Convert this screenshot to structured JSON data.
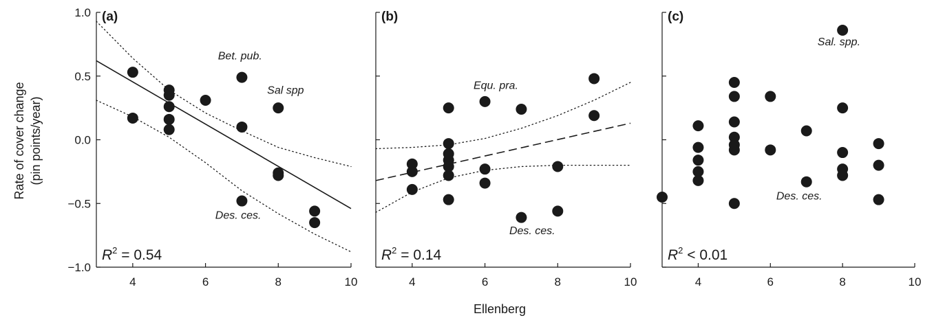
{
  "figure": {
    "ylabel_line1": "Rate of cover change",
    "ylabel_line2": "(pin points/year)",
    "xlabel": "Ellenberg"
  },
  "chart_data": [
    {
      "type": "scatter",
      "panel": "(a)",
      "r2_prefix": "R",
      "r2_sup": "2",
      "r2_value": " = 0.54",
      "xlim": [
        3,
        10
      ],
      "ylim": [
        -1.0,
        1.0
      ],
      "x_ticks": [
        4,
        6,
        8,
        10
      ],
      "y_ticks": [
        -1.0,
        -0.5,
        0.0,
        0.5,
        1.0
      ],
      "y_tick_labels": [
        "−1.0",
        "−0.5",
        "0.0",
        "0.5",
        "1.0"
      ],
      "points": [
        [
          4,
          0.53
        ],
        [
          4,
          0.17
        ],
        [
          5,
          0.39
        ],
        [
          5,
          0.35
        ],
        [
          5,
          0.26
        ],
        [
          5,
          0.16
        ],
        [
          5,
          0.08
        ],
        [
          6,
          0.31
        ],
        [
          7,
          0.49
        ],
        [
          7,
          0.1
        ],
        [
          7,
          -0.48
        ],
        [
          8,
          0.25
        ],
        [
          8,
          -0.26
        ],
        [
          8,
          -0.28
        ],
        [
          9,
          -0.56
        ],
        [
          9,
          -0.65
        ]
      ],
      "fit_line": {
        "style": "solid",
        "x": [
          3,
          10
        ],
        "y": [
          0.62,
          -0.54
        ]
      },
      "ci_lower": {
        "x": [
          3,
          4,
          5,
          6,
          7,
          8,
          9,
          10
        ],
        "y": [
          0.31,
          0.18,
          0.02,
          -0.18,
          -0.4,
          -0.58,
          -0.74,
          -0.88
        ]
      },
      "ci_upper": {
        "x": [
          3,
          4,
          5,
          6,
          7,
          8,
          9,
          10
        ],
        "y": [
          0.93,
          0.64,
          0.39,
          0.21,
          0.07,
          -0.06,
          -0.14,
          -0.21
        ]
      },
      "annotations": [
        {
          "text": "Bet. pub.",
          "x": 6.95,
          "y": 0.63
        },
        {
          "text": "Sal spp",
          "x": 8.2,
          "y": 0.36
        },
        {
          "text": "Des. ces.",
          "x": 6.9,
          "y": -0.62
        }
      ]
    },
    {
      "type": "scatter",
      "panel": "(b)",
      "r2_prefix": "R",
      "r2_sup": "2",
      "r2_value": " = 0.14",
      "xlim": [
        3,
        10
      ],
      "ylim": [
        -1.0,
        1.0
      ],
      "x_ticks": [
        4,
        6,
        8,
        10
      ],
      "y_ticks": [
        -1.0,
        -0.5,
        0.0,
        0.5,
        1.0
      ],
      "points": [
        [
          4,
          -0.19
        ],
        [
          4,
          -0.25
        ],
        [
          4,
          -0.39
        ],
        [
          5,
          0.25
        ],
        [
          5,
          -0.03
        ],
        [
          5,
          -0.11
        ],
        [
          5,
          -0.16
        ],
        [
          5,
          -0.21
        ],
        [
          5,
          -0.28
        ],
        [
          5,
          -0.47
        ],
        [
          6,
          0.3
        ],
        [
          6,
          -0.23
        ],
        [
          6,
          -0.34
        ],
        [
          7,
          0.24
        ],
        [
          7,
          -0.61
        ],
        [
          8,
          -0.21
        ],
        [
          8,
          -0.56
        ],
        [
          9,
          0.48
        ],
        [
          9,
          0.19
        ]
      ],
      "fit_line": {
        "style": "dashed",
        "x": [
          3,
          10
        ],
        "y": [
          -0.32,
          0.13
        ]
      },
      "ci_lower": {
        "x": [
          3,
          4,
          5,
          6,
          7,
          8,
          9,
          10
        ],
        "y": [
          -0.57,
          -0.41,
          -0.3,
          -0.24,
          -0.21,
          -0.2,
          -0.2,
          -0.2
        ]
      },
      "ci_upper": {
        "x": [
          3,
          4,
          5,
          6,
          7,
          8,
          9,
          10
        ],
        "y": [
          -0.07,
          -0.06,
          -0.04,
          0.01,
          0.09,
          0.19,
          0.31,
          0.45
        ]
      },
      "annotations": [
        {
          "text": "Equ. pra.",
          "x": 6.3,
          "y": 0.4
        },
        {
          "text": "Des. ces.",
          "x": 7.3,
          "y": -0.74
        }
      ]
    },
    {
      "type": "scatter",
      "panel": "(c)",
      "r2_prefix": "R",
      "r2_sup": "2",
      "r2_value": " < 0.01",
      "xlim": [
        3,
        10
      ],
      "ylim": [
        -1.0,
        1.0
      ],
      "x_ticks": [
        4,
        6,
        8,
        10
      ],
      "y_ticks": [
        -1.0,
        -0.5,
        0.0,
        0.5,
        1.0
      ],
      "points": [
        [
          3,
          -0.45
        ],
        [
          4,
          0.11
        ],
        [
          4,
          -0.06
        ],
        [
          4,
          -0.16
        ],
        [
          4,
          -0.25
        ],
        [
          4,
          -0.32
        ],
        [
          5,
          0.45
        ],
        [
          5,
          0.34
        ],
        [
          5,
          0.14
        ],
        [
          5,
          0.02
        ],
        [
          5,
          -0.04
        ],
        [
          5,
          -0.08
        ],
        [
          5,
          -0.5
        ],
        [
          6,
          0.34
        ],
        [
          6,
          -0.08
        ],
        [
          7,
          0.07
        ],
        [
          7,
          -0.33
        ],
        [
          8,
          0.86
        ],
        [
          8,
          0.25
        ],
        [
          8,
          -0.1
        ],
        [
          8,
          -0.23
        ],
        [
          8,
          -0.28
        ],
        [
          9,
          -0.03
        ],
        [
          9,
          -0.2
        ],
        [
          9,
          -0.47
        ]
      ],
      "annotations": [
        {
          "text": "Sal. spp.",
          "x": 7.9,
          "y": 0.74
        },
        {
          "text": "Des. ces.",
          "x": 6.8,
          "y": -0.47
        }
      ]
    }
  ]
}
